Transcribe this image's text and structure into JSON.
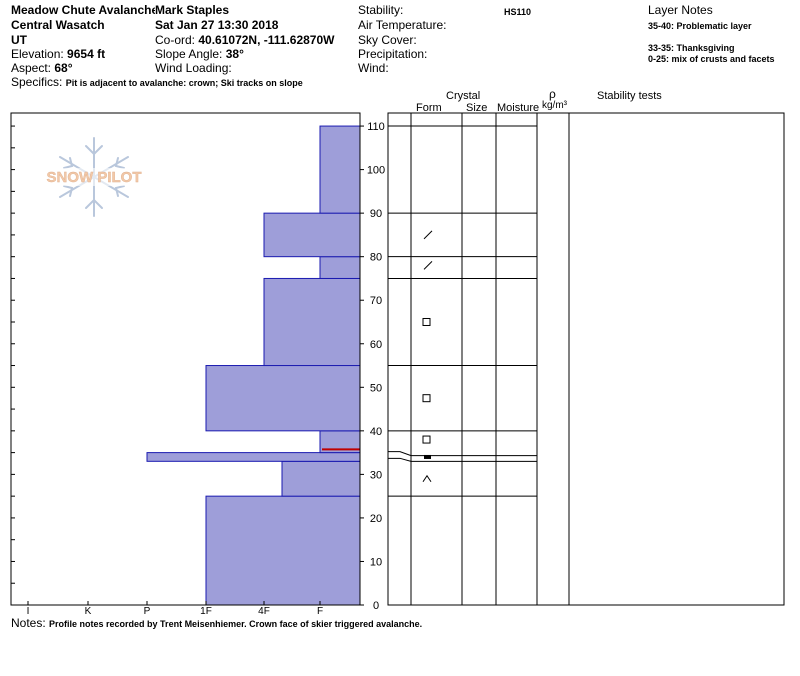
{
  "header": {
    "location": "Meadow Chute Avalanche",
    "range": "Central Wasatch",
    "state": "UT",
    "elevation_label": "Elevation:",
    "elevation_value": "9654 ft",
    "aspect_label": "Aspect:",
    "aspect_value": "68°",
    "observer": "Mark Staples",
    "datetime": "Sat Jan 27 13:30 2018",
    "coord_label": "Co-ord:",
    "coord_value": "40.61072N, -111.62870W",
    "slope_label": "Slope Angle:",
    "slope_value": "38°",
    "wind_loading_label": "Wind Loading:",
    "stability_label": "Stability:",
    "hs_code": "HS110",
    "air_temp_label": "Air Temperature:",
    "sky_cover_label": "Sky Cover:",
    "precip_label": "Precipitation:",
    "wind_label": "Wind:",
    "specifics_label": "Specifics:",
    "specifics_value": "Pit is adjacent to avalanche: crown; Ski tracks on slope"
  },
  "layer_notes": {
    "title": "Layer Notes",
    "items": [
      "35-40: Problematic layer",
      "33-35: Thanksgiving",
      "0-25: mix of crusts and facets"
    ]
  },
  "column_headers": {
    "crystal": "Crystal",
    "form": "Form",
    "size": "Size",
    "moisture": "Moisture",
    "rho": "ρ",
    "density_unit": "kg/m³",
    "stability_tests": "Stability tests"
  },
  "watermark": "SNOW PILOT",
  "notes_label": "Notes:",
  "notes_value": "Profile notes recorded by Trent Meisenhiemer. Crown face of skier triggered avalanche.",
  "colors": {
    "layer_fill": "#9e9ed9",
    "layer_stroke": "#1a1ab0",
    "highlight": "#c00000",
    "watermark": "#b9c7dc",
    "watermark_text": "#f2c9a8"
  },
  "chart_data": {
    "type": "bar",
    "title": "",
    "ylabel": "",
    "ylim": [
      0,
      113
    ],
    "y_ticks": [
      0,
      10,
      20,
      30,
      40,
      50,
      60,
      70,
      80,
      90,
      100,
      110
    ],
    "hardness_scale": [
      "I",
      "K",
      "P",
      "1F",
      "4F",
      "F"
    ],
    "layers": [
      {
        "bottom": 0,
        "top": 25,
        "hardness": "1F"
      },
      {
        "bottom": 25,
        "top": 33,
        "hardness": "4F-"
      },
      {
        "bottom": 33,
        "top": 35,
        "hardness": "P+"
      },
      {
        "bottom": 35,
        "top": 40,
        "hardness": "F"
      },
      {
        "bottom": 40,
        "top": 55,
        "hardness": "1F"
      },
      {
        "bottom": 55,
        "top": 75,
        "hardness": "4F"
      },
      {
        "bottom": 75,
        "top": 80,
        "hardness": "F"
      },
      {
        "bottom": 80,
        "top": 90,
        "hardness": "4F"
      },
      {
        "bottom": 90,
        "top": 110,
        "hardness": "F"
      }
    ],
    "highlight_layer": {
      "bottom": 35,
      "top": 35.5
    },
    "form_symbols": [
      {
        "depth": 85,
        "symbol": "⁄"
      },
      {
        "depth": 78,
        "symbol": "⁄"
      },
      {
        "depth": 65,
        "symbol": "□"
      },
      {
        "depth": 47.5,
        "symbol": "□"
      },
      {
        "depth": 38,
        "symbol": "□"
      },
      {
        "depth": 34,
        "symbol": "▬"
      },
      {
        "depth": 29,
        "symbol": "∧"
      }
    ],
    "layer_boundaries": [
      25,
      33,
      35,
      40,
      55,
      75,
      80,
      90,
      110
    ]
  }
}
